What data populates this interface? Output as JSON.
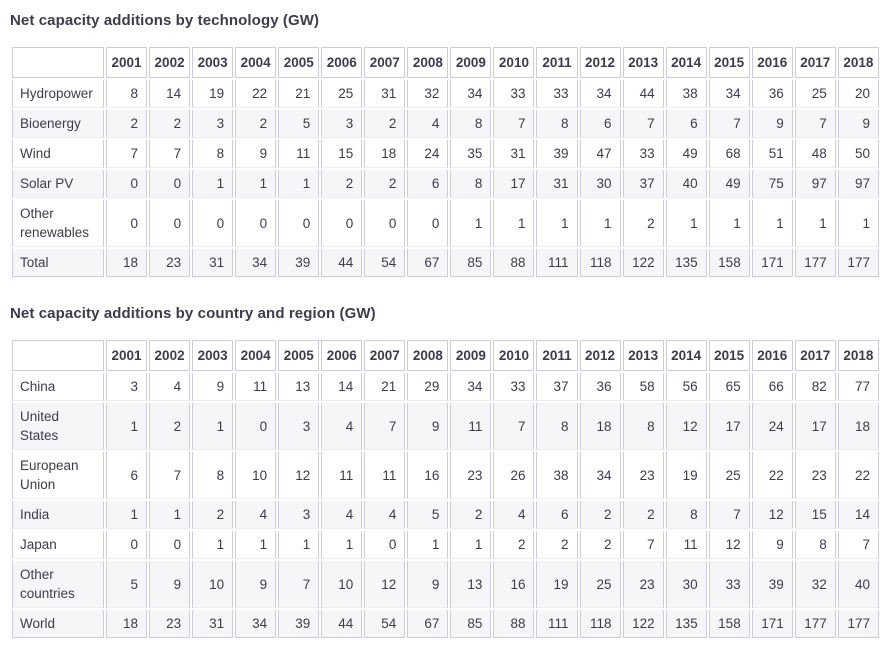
{
  "colors": {
    "text": "#3c3c4c",
    "border": "#ccccde",
    "row_stripe": "#f6f6f8",
    "background": "#ffffff"
  },
  "chart_data": [
    {
      "type": "table",
      "title": "Net capacity additions by technology (GW)",
      "columns": [
        "2001",
        "2002",
        "2003",
        "2004",
        "2005",
        "2006",
        "2007",
        "2008",
        "2009",
        "2010",
        "2011",
        "2012",
        "2013",
        "2014",
        "2015",
        "2016",
        "2017",
        "2018"
      ],
      "rows": [
        {
          "label": "Hydropower",
          "values": [
            8,
            14,
            19,
            22,
            21,
            25,
            31,
            32,
            34,
            33,
            33,
            34,
            44,
            38,
            34,
            36,
            25,
            20
          ]
        },
        {
          "label": "Bioenergy",
          "values": [
            2,
            2,
            3,
            2,
            5,
            3,
            2,
            4,
            8,
            7,
            8,
            6,
            7,
            6,
            7,
            9,
            7,
            9
          ]
        },
        {
          "label": "Wind",
          "values": [
            7,
            7,
            8,
            9,
            11,
            15,
            18,
            24,
            35,
            31,
            39,
            47,
            33,
            49,
            68,
            51,
            48,
            50
          ]
        },
        {
          "label": "Solar PV",
          "values": [
            0,
            0,
            1,
            1,
            1,
            2,
            2,
            6,
            8,
            17,
            31,
            30,
            37,
            40,
            49,
            75,
            97,
            97
          ]
        },
        {
          "label": "Other renewables",
          "values": [
            0,
            0,
            0,
            0,
            0,
            0,
            0,
            0,
            1,
            1,
            1,
            1,
            2,
            1,
            1,
            1,
            1,
            1
          ]
        },
        {
          "label": "Total",
          "values": [
            18,
            23,
            31,
            34,
            39,
            44,
            54,
            67,
            85,
            88,
            111,
            118,
            122,
            135,
            158,
            171,
            177,
            177
          ]
        }
      ]
    },
    {
      "type": "table",
      "title": "Net capacity additions by country and region (GW)",
      "columns": [
        "2001",
        "2002",
        "2003",
        "2004",
        "2005",
        "2006",
        "2007",
        "2008",
        "2009",
        "2010",
        "2011",
        "2012",
        "2013",
        "2014",
        "2015",
        "2016",
        "2017",
        "2018"
      ],
      "rows": [
        {
          "label": "China",
          "values": [
            3,
            4,
            9,
            11,
            13,
            14,
            21,
            29,
            34,
            33,
            37,
            36,
            58,
            56,
            65,
            66,
            82,
            77
          ]
        },
        {
          "label": "United States",
          "values": [
            1,
            2,
            1,
            0,
            3,
            4,
            7,
            9,
            11,
            7,
            8,
            18,
            8,
            12,
            17,
            24,
            17,
            18
          ]
        },
        {
          "label": "European Union",
          "values": [
            6,
            7,
            8,
            10,
            12,
            11,
            11,
            16,
            23,
            26,
            38,
            34,
            23,
            19,
            25,
            22,
            23,
            22
          ]
        },
        {
          "label": "India",
          "values": [
            1,
            1,
            2,
            4,
            3,
            4,
            4,
            5,
            2,
            4,
            6,
            2,
            2,
            8,
            7,
            12,
            15,
            14
          ]
        },
        {
          "label": "Japan",
          "values": [
            0,
            0,
            1,
            1,
            1,
            1,
            0,
            1,
            1,
            2,
            2,
            2,
            7,
            11,
            12,
            9,
            8,
            7
          ]
        },
        {
          "label": "Other countries",
          "values": [
            5,
            9,
            10,
            9,
            7,
            10,
            12,
            9,
            13,
            16,
            19,
            25,
            23,
            30,
            33,
            39,
            32,
            40
          ]
        },
        {
          "label": "World",
          "values": [
            18,
            23,
            31,
            34,
            39,
            44,
            54,
            67,
            85,
            88,
            111,
            118,
            122,
            135,
            158,
            171,
            177,
            177
          ]
        }
      ]
    }
  ]
}
